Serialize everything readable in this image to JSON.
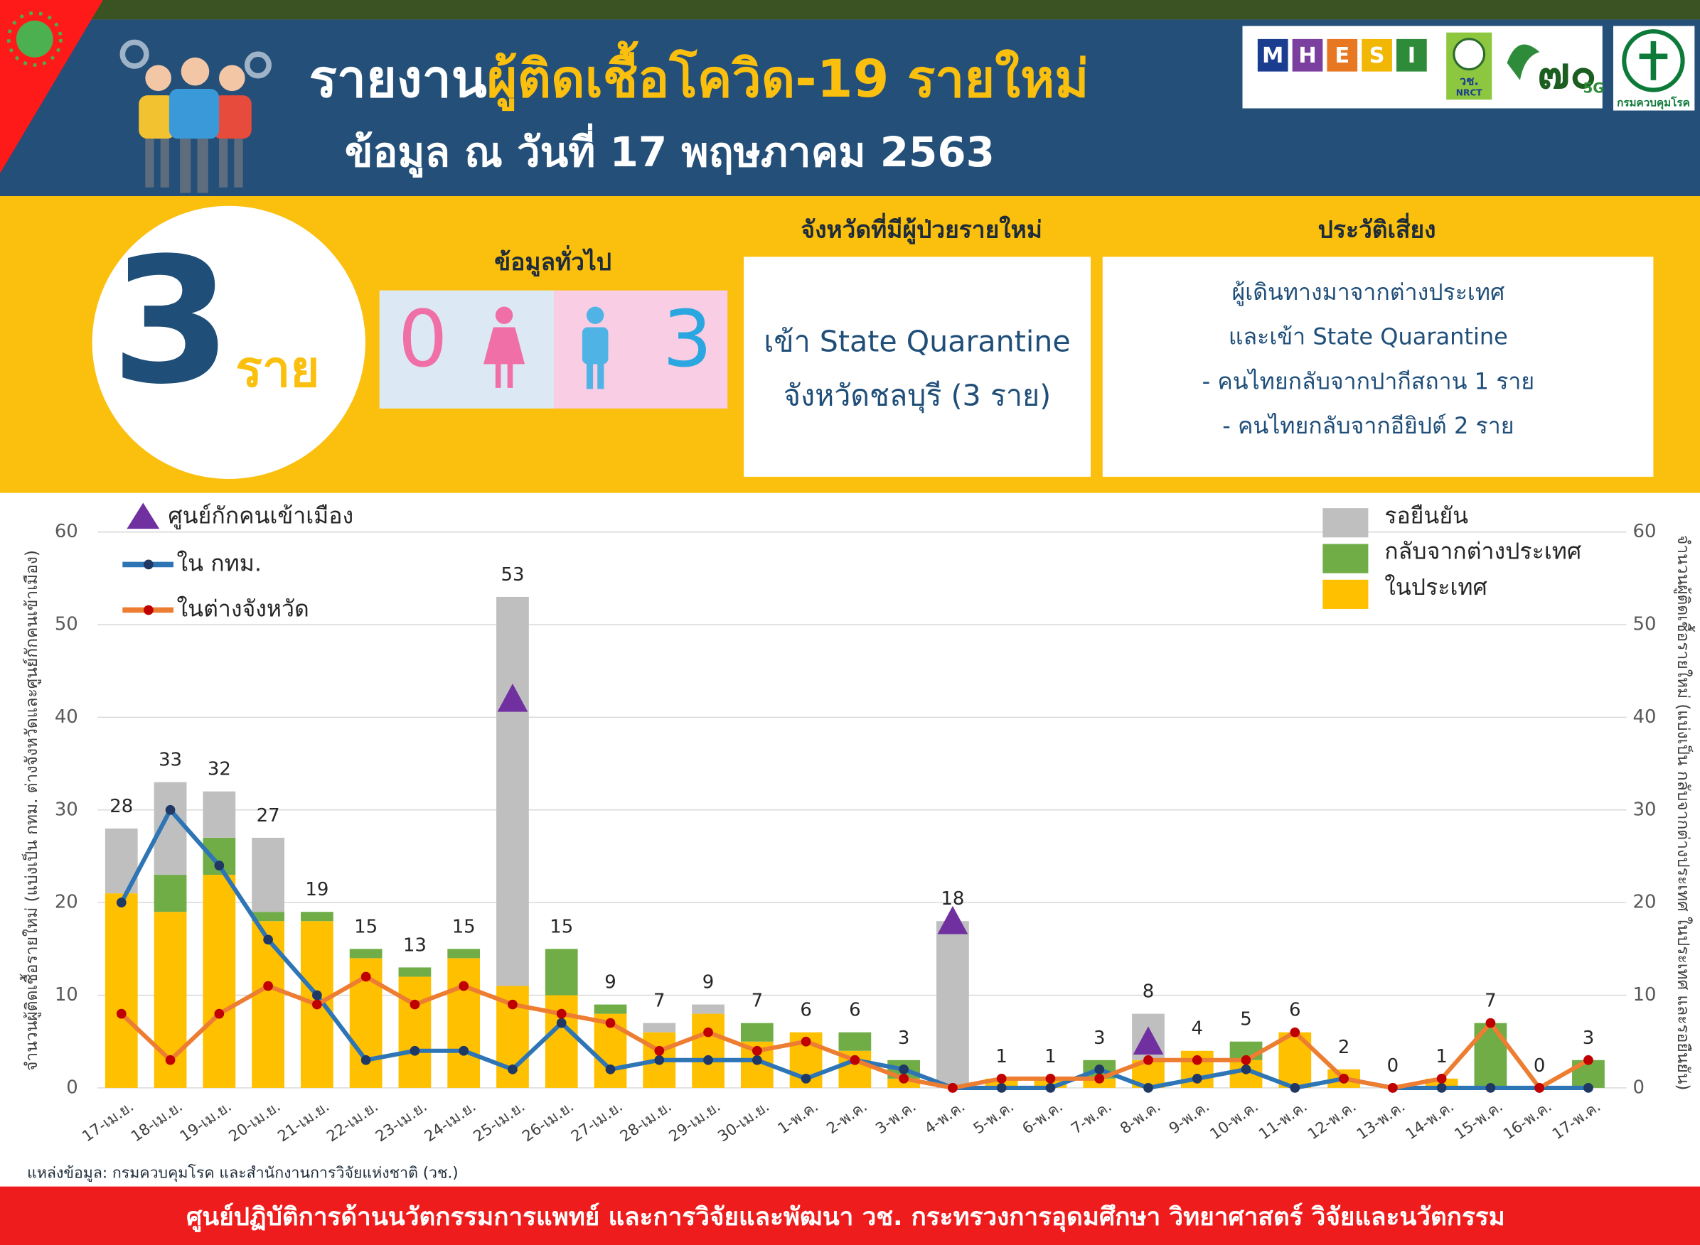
{
  "header": {
    "title_white": "รายงาน",
    "title_yellow": "ผู้ติดเชื้อโควิด-19 รายใหม่",
    "subtitle": "ข้อมูล ณ วันที่ 17 พฤษภาคม 2563",
    "logo_letters": [
      "M",
      "H",
      "E",
      "S",
      "I"
    ],
    "logo_nrct": "วช.",
    "logo_nrct_en": "NRCT",
    "logo_5g": "5G",
    "logo_ddc": "กรมควบคุมโรค"
  },
  "summary": {
    "count": 3,
    "unit": "ราย",
    "general_title": "ข้อมูลทั่วไป",
    "female": 0,
    "male": 3,
    "province_title": "จังหวัดที่มีผู้ป่วยรายใหม่",
    "province_lines": [
      "เข้า State Quarantine",
      "จังหวัดชลบุรี (3 ราย)"
    ],
    "risk_title": "ประวัติเสี่ยง",
    "risk_lines": [
      "ผู้เดินทางมาจากต่างประเทศ",
      "และเข้า State Quarantine",
      "- คนไทยกลับจากปากีสถาน 1 ราย",
      "- คนไทยกลับจากอียิปต์ 2 ราย"
    ]
  },
  "chart_data": {
    "type": "combo",
    "categories": [
      "17-เม.ย.",
      "18-เม.ย.",
      "19-เม.ย.",
      "20-เม.ย.",
      "21-เม.ย.",
      "22-เม.ย.",
      "23-เม.ย.",
      "24-เม.ย.",
      "25-เม.ย.",
      "26-เม.ย.",
      "27-เม.ย.",
      "28-เม.ย.",
      "29-เม.ย.",
      "30-เม.ย.",
      "1-พ.ค.",
      "2-พ.ค.",
      "3-พ.ค.",
      "4-พ.ค.",
      "5-พ.ค.",
      "6-พ.ค.",
      "7-พ.ค.",
      "8-พ.ค.",
      "9-พ.ค.",
      "10-พ.ค.",
      "11-พ.ค.",
      "12-พ.ค.",
      "13-พ.ค.",
      "14-พ.ค.",
      "15-พ.ค.",
      "16-พ.ค.",
      "17-พ.ค."
    ],
    "ylabel": "จำนวนผู้ติดเชื้อรายใหม่ (แบ่งเป็น กทม. ต่างจังหวัดและศูนย์กักคนเข้าเมือง)",
    "y2label": "จำนวนผู้ติดเชื้อรายใหม่ (แบ่งเป็น กลับจากต่างประเทศ ในประเทศ และรอยืนยัน)",
    "ylim": [
      0,
      60
    ],
    "yticks": [
      0,
      10,
      20,
      30,
      40,
      50,
      60
    ],
    "y2lim": [
      0,
      60
    ],
    "y2ticks": [
      0,
      10,
      20,
      30,
      40,
      50,
      60
    ],
    "grid": true,
    "series": [
      {
        "name": "ในประเทศ",
        "type": "bar",
        "axis": "y2",
        "color": "#ffc000",
        "values": [
          21,
          19,
          23,
          18,
          18,
          14,
          12,
          14,
          11,
          10,
          8,
          6,
          8,
          5,
          6,
          4,
          1,
          0,
          1,
          1,
          1,
          3,
          4,
          3,
          6,
          2,
          0,
          1,
          0,
          0,
          0
        ]
      },
      {
        "name": "กลับจากต่างประเทศ",
        "type": "bar",
        "axis": "y2",
        "color": "#70ad47",
        "values": [
          0,
          4,
          4,
          1,
          1,
          1,
          1,
          1,
          0,
          5,
          1,
          0,
          0,
          2,
          0,
          2,
          2,
          0,
          0,
          0,
          2,
          0,
          0,
          2,
          0,
          0,
          0,
          0,
          7,
          0,
          3
        ]
      },
      {
        "name": "รอยืนยัน",
        "type": "bar",
        "axis": "y2",
        "color": "#bfbfbf",
        "values": [
          7,
          10,
          5,
          8,
          0,
          0,
          0,
          0,
          42,
          0,
          0,
          1,
          1,
          0,
          0,
          0,
          0,
          18,
          0,
          0,
          0,
          5,
          0,
          0,
          0,
          0,
          0,
          0,
          0,
          0,
          0
        ]
      },
      {
        "name": "ใน กทม.",
        "type": "line",
        "color": "#2e75b6",
        "marker_color": "#1f3864",
        "values": [
          20,
          30,
          24,
          16,
          10,
          3,
          4,
          4,
          2,
          7,
          2,
          3,
          3,
          3,
          1,
          3,
          2,
          0,
          0,
          0,
          2,
          0,
          1,
          2,
          0,
          1,
          0,
          0,
          0,
          0,
          0
        ]
      },
      {
        "name": "ในต่างจังหวัด",
        "type": "line",
        "color": "#ed7d31",
        "marker_color": "#c00000",
        "values": [
          8,
          3,
          8,
          11,
          9,
          12,
          9,
          11,
          9,
          8,
          7,
          4,
          6,
          4,
          5,
          3,
          1,
          0,
          1,
          1,
          1,
          3,
          3,
          3,
          6,
          1,
          0,
          1,
          7,
          0,
          3
        ]
      },
      {
        "name": "ศูนย์กักคนเข้าเมือง",
        "type": "marker",
        "color": "#7030a0",
        "values": [
          null,
          null,
          null,
          null,
          null,
          null,
          null,
          null,
          42,
          null,
          null,
          null,
          null,
          null,
          null,
          null,
          null,
          18,
          null,
          null,
          null,
          5,
          null,
          null,
          null,
          null,
          null,
          null,
          null,
          null,
          null
        ]
      }
    ],
    "totals": [
      28,
      33,
      32,
      27,
      19,
      15,
      13,
      15,
      53,
      15,
      9,
      7,
      9,
      7,
      6,
      6,
      3,
      18,
      1,
      1,
      3,
      8,
      4,
      5,
      6,
      2,
      0,
      1,
      7,
      0,
      3
    ]
  },
  "source": "แหล่งข้อมูล: กรมควบคุมโรค และสำนักงานการวิจัยแห่งชาติ (วช.)",
  "footer": "ศูนย์ปฏิบัติการด้านนวัตกรรมการแพทย์ และการวิจัยและพัฒนา  วช.   กระทรวงการอุดมศึกษา วิทยาศาสตร์ วิจัยและนวัตกรรม"
}
